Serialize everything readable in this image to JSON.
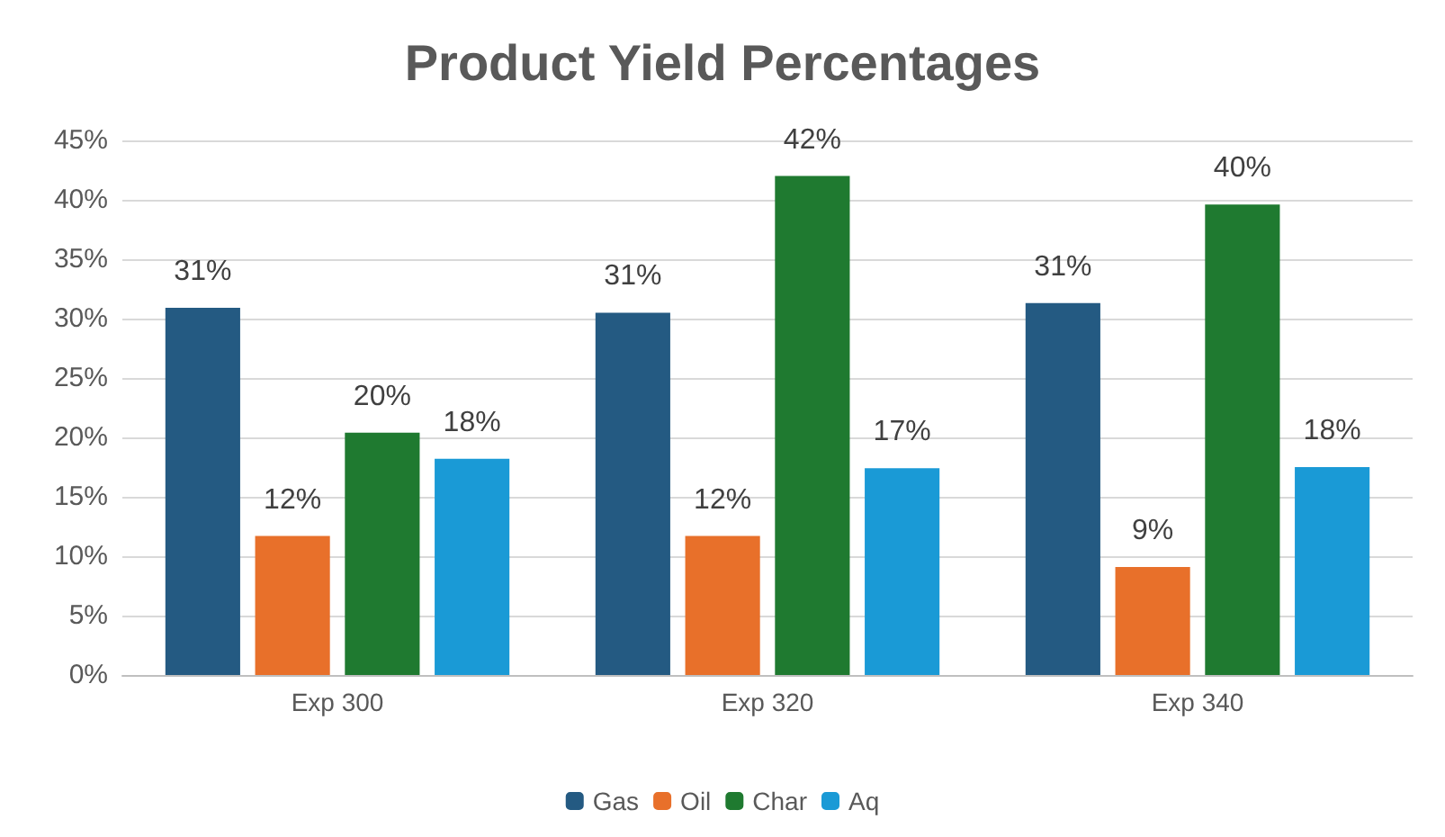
{
  "chart_data": {
    "type": "bar",
    "title": "Product Yield Percentages",
    "categories": [
      "Exp 300",
      "Exp 320",
      "Exp 340"
    ],
    "series": [
      {
        "name": "Gas",
        "color": "#245a82",
        "values": [
          30.9,
          30.5,
          31.3
        ],
        "value_labels": [
          "31%",
          "31%",
          "31%"
        ]
      },
      {
        "name": "Oil",
        "color": "#e8702a",
        "values": [
          11.7,
          11.7,
          9.1
        ],
        "value_labels": [
          "12%",
          "12%",
          "9%"
        ]
      },
      {
        "name": "Char",
        "color": "#1f7a30",
        "values": [
          20.4,
          42,
          39.6
        ],
        "value_labels": [
          "20%",
          "42%",
          "40%"
        ]
      },
      {
        "name": "Aq",
        "color": "#1a9ad6",
        "values": [
          18.2,
          17.4,
          17.5
        ],
        "value_labels": [
          "18%",
          "17%",
          "18%"
        ]
      }
    ],
    "ylim": [
      0,
      45
    ],
    "yticks": [
      {
        "value": 0,
        "label": "0%"
      },
      {
        "value": 5,
        "label": "5%"
      },
      {
        "value": 10,
        "label": "10%"
      },
      {
        "value": 15,
        "label": "15%"
      },
      {
        "value": 20,
        "label": "20%"
      },
      {
        "value": 25,
        "label": "25%"
      },
      {
        "value": 30,
        "label": "30%"
      },
      {
        "value": 35,
        "label": "35%"
      },
      {
        "value": 40,
        "label": "40%"
      },
      {
        "value": 45,
        "label": "45%"
      }
    ],
    "grid": "y",
    "legend": "bottom"
  }
}
